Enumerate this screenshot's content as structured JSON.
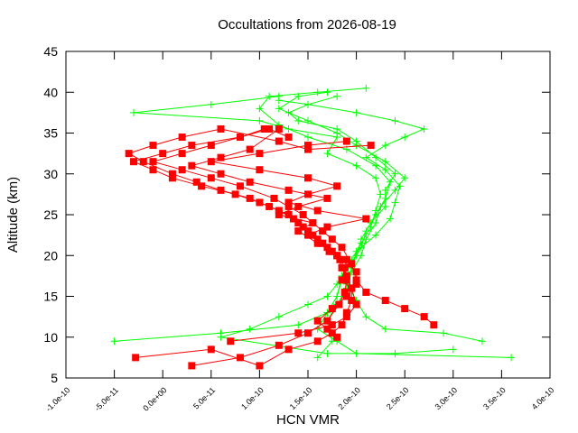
{
  "chart_data": {
    "type": "line",
    "title": "Occultations from 2026-08-19",
    "xlabel": "HCN VMR",
    "ylabel": "Altitude (km)",
    "xlim": [
      -1e-10,
      4e-10
    ],
    "ylim": [
      5,
      45
    ],
    "x_tick_values": [
      -1e-10,
      -5e-11,
      0.0,
      5e-11,
      1e-10,
      1.5e-10,
      2e-10,
      2.5e-10,
      3e-10,
      3.5e-10,
      4e-10
    ],
    "x_tick_labels": [
      "-1.0e-10",
      "-5.0e-11",
      "0.0e+00",
      "5.0e-11",
      "1.0e-10",
      "1.5e-10",
      "2.0e-10",
      "2.5e-10",
      "3.0e-10",
      "3.5e-10",
      "4.0e-10"
    ],
    "y_tick_values": [
      5,
      10,
      15,
      20,
      25,
      30,
      35,
      40,
      45
    ],
    "y_tick_labels": [
      "5",
      "10",
      "15",
      "20",
      "25",
      "30",
      "35",
      "40",
      "45"
    ],
    "grid": false,
    "legend": "none",
    "series": [
      {
        "color": "#ff0000",
        "marker": "square",
        "values": [
          [
            -2.8e-11,
            7.5
          ],
          [
            5e-11,
            8.5
          ],
          [
            1e-10,
            6.5
          ],
          [
            1.3e-10,
            8.5
          ],
          [
            1.6e-10,
            9.5
          ],
          [
            1.75e-10,
            10.5
          ],
          [
            1.85e-10,
            11.5
          ],
          [
            1.9e-10,
            13.0
          ],
          [
            1.95e-10,
            14.5
          ],
          [
            1.95e-10,
            16.0
          ],
          [
            1.9e-10,
            17.5
          ],
          [
            1.85e-10,
            18.5
          ],
          [
            1.8e-10,
            20.0
          ],
          [
            1.7e-10,
            21.0
          ],
          [
            1.6e-10,
            22.0
          ],
          [
            1.5e-10,
            23.0
          ],
          [
            1.4e-10,
            24.0
          ],
          [
            1.3e-10,
            25.0
          ],
          [
            1.1e-10,
            26.0
          ],
          [
            9e-11,
            27.0
          ],
          [
            6e-11,
            28.0
          ],
          [
            3.5e-11,
            29.0
          ],
          [
            1e-11,
            30.0
          ],
          [
            -2e-11,
            31.5
          ],
          [
            -3.5e-11,
            32.5
          ],
          [
            -1e-11,
            33.5
          ],
          [
            2e-11,
            34.5
          ],
          [
            6e-11,
            35.5
          ],
          [
            1.2e-10,
            34.0
          ],
          [
            1.5e-10,
            33.0
          ],
          [
            2.15e-10,
            33.5
          ]
        ]
      },
      {
        "color": "#ff0000",
        "marker": "square",
        "values": [
          [
            3e-11,
            6.5
          ],
          [
            8e-11,
            7.5
          ],
          [
            1.2e-10,
            9.0
          ],
          [
            1.5e-10,
            10.5
          ],
          [
            1.7e-10,
            12.0
          ],
          [
            1.82e-10,
            14.0
          ],
          [
            1.88e-10,
            15.5
          ],
          [
            1.9e-10,
            17.0
          ],
          [
            1.88e-10,
            18.5
          ],
          [
            1.83e-10,
            19.5
          ],
          [
            1.72e-10,
            20.5
          ],
          [
            1.62e-10,
            21.5
          ],
          [
            1.55e-10,
            22.5
          ],
          [
            1.45e-10,
            23.5
          ],
          [
            1.35e-10,
            24.5
          ],
          [
            1.2e-10,
            25.5
          ],
          [
            1e-10,
            26.5
          ],
          [
            7.5e-11,
            27.5
          ],
          [
            4e-11,
            28.5
          ],
          [
            1e-11,
            29.5
          ],
          [
            -1e-11,
            30.5
          ],
          [
            -3e-11,
            31.5
          ],
          [
            0.0,
            32.5
          ],
          [
            3e-11,
            33.5
          ],
          [
            8e-11,
            34.5
          ],
          [
            1.1e-10,
            35.5
          ],
          [
            1.3e-10,
            34.5
          ]
        ]
      },
      {
        "color": "#ff0000",
        "marker": "square",
        "values": [
          [
            2.8e-10,
            11.5
          ],
          [
            2.7e-10,
            12.5
          ],
          [
            2.5e-10,
            13.5
          ],
          [
            2.3e-10,
            14.5
          ],
          [
            2.1e-10,
            15.5
          ],
          [
            2e-10,
            17.0
          ],
          [
            1.95e-10,
            19.0
          ],
          [
            1.85e-10,
            21.0
          ],
          [
            1.75e-10,
            22.0
          ],
          [
            1.65e-10,
            23.0
          ],
          [
            1.55e-10,
            24.0
          ],
          [
            1.45e-10,
            25.0
          ],
          [
            1.3e-10,
            26.0
          ],
          [
            1.15e-10,
            27.0
          ],
          [
            8e-11,
            28.5
          ],
          [
            5e-11,
            29.5
          ],
          [
            2e-11,
            30.5
          ],
          [
            -1e-11,
            31.5
          ],
          [
            2e-11,
            32.5
          ],
          [
            5e-11,
            33.5
          ],
          [
            8e-11,
            34.5
          ],
          [
            1.05e-10,
            35.5
          ]
        ]
      },
      {
        "color": "#ff0000",
        "marker": "square",
        "values": [
          [
            1.8e-10,
            10.0
          ],
          [
            1.7e-10,
            11.0
          ],
          [
            1.6e-10,
            12.0
          ],
          [
            1.75e-10,
            13.5
          ],
          [
            1.9e-10,
            15.0
          ],
          [
            2e-10,
            16.5
          ],
          [
            2e-10,
            18.0
          ],
          [
            1.8e-10,
            20.0
          ],
          [
            1.65e-10,
            21.5
          ],
          [
            1.5e-10,
            22.5
          ],
          [
            1.7e-10,
            23.5
          ],
          [
            2.1e-10,
            24.5
          ],
          [
            1.6e-10,
            25.5
          ],
          [
            1.3e-10,
            26.5
          ],
          [
            1.5e-10,
            27.5
          ],
          [
            1.8e-10,
            28.5
          ],
          [
            1.5e-10,
            29.5
          ],
          [
            1e-10,
            30.5
          ],
          [
            5e-11,
            31.5
          ],
          [
            1e-10,
            32.5
          ],
          [
            1.5e-10,
            33.5
          ],
          [
            1.9e-10,
            34.0
          ]
        ]
      },
      {
        "color": "#ff0000",
        "marker": "square",
        "values": [
          [
            7e-11,
            9.5
          ],
          [
            1.4e-10,
            10.5
          ],
          [
            1.75e-10,
            11.5
          ],
          [
            1.9e-10,
            12.5
          ],
          [
            2e-10,
            14.0
          ],
          [
            1.95e-10,
            16.0
          ],
          [
            1.85e-10,
            17.0
          ],
          [
            1.9e-10,
            19.5
          ],
          [
            1.75e-10,
            20.5
          ],
          [
            1.6e-10,
            21.5
          ],
          [
            1.4e-10,
            23.0
          ],
          [
            1.55e-10,
            24.0
          ],
          [
            1.2e-10,
            25.0
          ],
          [
            1.4e-10,
            26.0
          ],
          [
            1.7e-10,
            27.0
          ],
          [
            1.3e-10,
            28.0
          ],
          [
            9e-11,
            29.0
          ],
          [
            6e-11,
            30.0
          ],
          [
            3e-11,
            31.0
          ],
          [
            6e-11,
            32.0
          ],
          [
            9e-11,
            33.0
          ],
          [
            1.2e-10,
            35.5
          ]
        ]
      },
      {
        "color": "#00ff00",
        "marker": "plus",
        "values": [
          [
            -5e-11,
            9.5
          ],
          [
            6e-11,
            10.5
          ],
          [
            1.4e-10,
            11.5
          ],
          [
            1.7e-10,
            13.0
          ],
          [
            1.8e-10,
            15.0
          ],
          [
            1.85e-10,
            17.0
          ],
          [
            1.95e-10,
            19.0
          ],
          [
            2.05e-10,
            21.0
          ],
          [
            2.1e-10,
            23.0
          ],
          [
            2.2e-10,
            25.0
          ],
          [
            2.3e-10,
            27.0
          ],
          [
            2.35e-10,
            29.0
          ],
          [
            2.2e-10,
            31.0
          ],
          [
            1.9e-10,
            33.0
          ],
          [
            1.5e-10,
            34.5
          ],
          [
            1.2e-10,
            36.0
          ],
          [
            1e-10,
            38.0
          ],
          [
            1.1e-10,
            39.5
          ],
          [
            1.6e-10,
            40.0
          ],
          [
            2.1e-10,
            40.5
          ]
        ]
      },
      {
        "color": "#00ff00",
        "marker": "plus",
        "values": [
          [
            1.6e-10,
            7.5
          ],
          [
            1.75e-10,
            9.5
          ],
          [
            1.7e-10,
            12.0
          ],
          [
            1.8e-10,
            14.0
          ],
          [
            1.9e-10,
            16.0
          ],
          [
            1.95e-10,
            18.0
          ],
          [
            2.05e-10,
            20.0
          ],
          [
            2.1e-10,
            22.0
          ],
          [
            2.2e-10,
            24.0
          ],
          [
            2.25e-10,
            26.0
          ],
          [
            2.4e-10,
            28.0
          ],
          [
            2.5e-10,
            29.5
          ],
          [
            2.3e-10,
            31.5
          ],
          [
            2e-10,
            33.5
          ],
          [
            1.8e-10,
            35.0
          ],
          [
            1.5e-10,
            36.5
          ],
          [
            1.2e-10,
            38.0
          ],
          [
            1.4e-10,
            39.5
          ],
          [
            1.7e-10,
            40.0
          ]
        ]
      },
      {
        "color": "#00ff00",
        "marker": "plus",
        "values": [
          [
            3.3e-10,
            9.5
          ],
          [
            2.9e-10,
            10.5
          ],
          [
            2.3e-10,
            11.0
          ],
          [
            2.1e-10,
            12.5
          ],
          [
            2e-10,
            14.5
          ],
          [
            1.9e-10,
            16.5
          ],
          [
            1.95e-10,
            18.5
          ],
          [
            2e-10,
            20.5
          ],
          [
            2.2e-10,
            22.5
          ],
          [
            2.35e-10,
            24.5
          ],
          [
            2.4e-10,
            26.5
          ],
          [
            2.45e-10,
            28.5
          ],
          [
            2.3e-10,
            30.5
          ],
          [
            2.1e-10,
            32.0
          ],
          [
            2.3e-10,
            33.5
          ],
          [
            2.5e-10,
            34.5
          ],
          [
            2.7e-10,
            35.5
          ],
          [
            2.4e-10,
            36.5
          ],
          [
            2e-10,
            37.5
          ],
          [
            1.5e-10,
            38.5
          ],
          [
            1.2e-10,
            39.0
          ]
        ]
      },
      {
        "color": "#00ff00",
        "marker": "plus",
        "values": [
          [
            3.6e-10,
            7.5
          ],
          [
            2e-10,
            8.0
          ],
          [
            1.8e-10,
            9.5
          ],
          [
            1.6e-10,
            11.0
          ],
          [
            1.7e-10,
            13.0
          ],
          [
            1.8e-10,
            15.0
          ],
          [
            1.85e-10,
            17.5
          ],
          [
            1.95e-10,
            19.5
          ],
          [
            2.05e-10,
            21.5
          ],
          [
            2.15e-10,
            23.5
          ],
          [
            2.2e-10,
            25.5
          ],
          [
            2.25e-10,
            27.5
          ],
          [
            2.2e-10,
            29.5
          ],
          [
            2e-10,
            31.0
          ],
          [
            1.7e-10,
            32.5
          ],
          [
            1.8e-10,
            34.5
          ],
          [
            1.3e-10,
            35.5
          ],
          [
            1e-10,
            36.5
          ],
          [
            -3e-11,
            37.5
          ],
          [
            5e-11,
            38.5
          ],
          [
            1.2e-10,
            39.5
          ]
        ]
      },
      {
        "color": "#00ff00",
        "marker": "plus",
        "values": [
          [
            3e-10,
            8.5
          ],
          [
            2.4e-10,
            8.0
          ],
          [
            1.7e-10,
            8.0
          ],
          [
            6e-11,
            10.0
          ],
          [
            9e-11,
            11.0
          ],
          [
            1.2e-10,
            12.5
          ],
          [
            1.5e-10,
            14.0
          ],
          [
            1.7e-10,
            15.0
          ],
          [
            1.8e-10,
            16.5
          ],
          [
            1.9e-10,
            18.5
          ],
          [
            2e-10,
            20.0
          ],
          [
            2.05e-10,
            22.0
          ],
          [
            2.15e-10,
            24.0
          ],
          [
            2.3e-10,
            26.0
          ],
          [
            2.3e-10,
            28.0
          ],
          [
            2.4e-10,
            30.0
          ],
          [
            2.2e-10,
            32.0
          ],
          [
            2e-10,
            34.0
          ],
          [
            1.8e-10,
            35.5
          ],
          [
            1.4e-10,
            36.5
          ],
          [
            1.3e-10,
            37.5
          ],
          [
            1.5e-10,
            38.5
          ],
          [
            1.8e-10,
            39.5
          ]
        ]
      }
    ]
  }
}
